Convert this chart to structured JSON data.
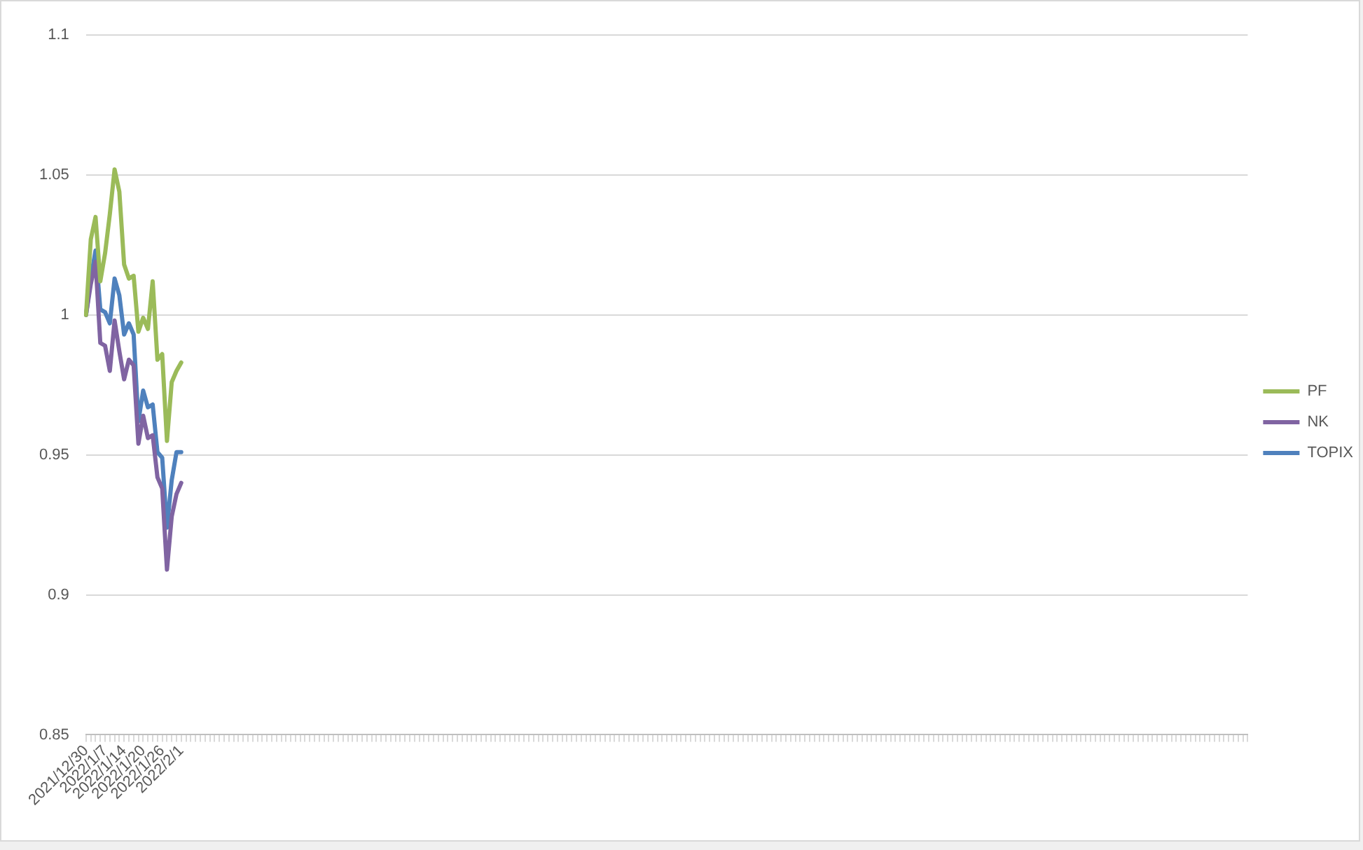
{
  "chart_data": {
    "type": "line",
    "categories": [
      "2021/12/30",
      null,
      null,
      null,
      "2022/1/7",
      null,
      null,
      null,
      "2022/1/14",
      null,
      null,
      null,
      "2022/1/20",
      null,
      null,
      null,
      "2022/1/26",
      null,
      null,
      null,
      "2022/2/1",
      null,
      null,
      null,
      null,
      null,
      null,
      null,
      null,
      null,
      null,
      null,
      null,
      null,
      null,
      null,
      null,
      null,
      null,
      null,
      null,
      null,
      null,
      null,
      null,
      null,
      null,
      null,
      null,
      null,
      null,
      null,
      null,
      null,
      null,
      null,
      null,
      null,
      null,
      null,
      null,
      null,
      null,
      null,
      null,
      null,
      null,
      null,
      null,
      null,
      null,
      null,
      null,
      null,
      null,
      null,
      null,
      null,
      null,
      null,
      null,
      null,
      null,
      null,
      null,
      null,
      null,
      null,
      null,
      null,
      null,
      null,
      null,
      null,
      null,
      null,
      null,
      null,
      null,
      null,
      null,
      null,
      null,
      null,
      null,
      null,
      null,
      null,
      null,
      null,
      null,
      null,
      null,
      null,
      null,
      null,
      null,
      null,
      null,
      null,
      null,
      null,
      null,
      null,
      null,
      null,
      null,
      null,
      null,
      null,
      null,
      null,
      null,
      null,
      null,
      null,
      null,
      null,
      null,
      null,
      null,
      null,
      null,
      null,
      null,
      null,
      null,
      null,
      null,
      null,
      null,
      null,
      null,
      null,
      null,
      null,
      null,
      null,
      null,
      null,
      null,
      null,
      null,
      null,
      null,
      null,
      null,
      null,
      null,
      null,
      null,
      null,
      null,
      null,
      null,
      null,
      null,
      null,
      null,
      null,
      null,
      null,
      null,
      null,
      null,
      null,
      null,
      null,
      null,
      null,
      null,
      null,
      null,
      null,
      null,
      null,
      null,
      null,
      null,
      null,
      null,
      null,
      null,
      null,
      null,
      null,
      null,
      null,
      null,
      null,
      null,
      null,
      null,
      null,
      null,
      null,
      null,
      null,
      null,
      null,
      null,
      null,
      null,
      null,
      null,
      null,
      null,
      null,
      null,
      null,
      null,
      null,
      null,
      null,
      null,
      null,
      null,
      null,
      null,
      null,
      null,
      null,
      null,
      null,
      null
    ],
    "series": [
      {
        "name": "PF",
        "color": "#9bbb59",
        "values": [
          1.0,
          1.027,
          1.035,
          1.012,
          1.022,
          1.036,
          1.052,
          1.044,
          1.018,
          1.013,
          1.014,
          0.994,
          0.999,
          0.995,
          1.012,
          0.984,
          0.986,
          0.955,
          0.976,
          0.98,
          0.983,
          null,
          null,
          null,
          null,
          null,
          null,
          null,
          null,
          null,
          null,
          null,
          null,
          null,
          null,
          null,
          null,
          null,
          null,
          null,
          null,
          null,
          null,
          null,
          null,
          null,
          null,
          null,
          null,
          null,
          null,
          null,
          null,
          null,
          null,
          null,
          null,
          null,
          null,
          null,
          null,
          null,
          null,
          null,
          null,
          null,
          null,
          null,
          null,
          null,
          null,
          null,
          null,
          null,
          null,
          null,
          null,
          null,
          null,
          null,
          null,
          null,
          null,
          null,
          null,
          null,
          null,
          null,
          null,
          null,
          null,
          null,
          null,
          null,
          null,
          null,
          null,
          null,
          null,
          null,
          null,
          null,
          null,
          null,
          null,
          null,
          null,
          null,
          null,
          null,
          null,
          null,
          null,
          null,
          null,
          null,
          null,
          null,
          null,
          null,
          null,
          null,
          null,
          null,
          null,
          null,
          null,
          null,
          null,
          null,
          null,
          null,
          null,
          null,
          null,
          null,
          null,
          null,
          null,
          null,
          null,
          null,
          null,
          null,
          null,
          null,
          null,
          null,
          null,
          null,
          null,
          null,
          null,
          null,
          null,
          null,
          null,
          null,
          null,
          null,
          null,
          null,
          null,
          null,
          null,
          null,
          null,
          null,
          null,
          null,
          null,
          null,
          null,
          null,
          null,
          null,
          null,
          null,
          null,
          null,
          null,
          null,
          null,
          null,
          null,
          null,
          null,
          null,
          null,
          null,
          null,
          null,
          null,
          null,
          null,
          null,
          null,
          null,
          null,
          null,
          null,
          null,
          null,
          null,
          null,
          null,
          null,
          null,
          null,
          null,
          null,
          null,
          null,
          null,
          null,
          null,
          null,
          null,
          null,
          null,
          null,
          null,
          null,
          null,
          null,
          null,
          null,
          null,
          null,
          null,
          null,
          null,
          null,
          null,
          null,
          null,
          null,
          null,
          null,
          null,
          null,
          null,
          null,
          null,
          null
        ]
      },
      {
        "name": "NK",
        "color": "#8064a2",
        "values": [
          1.0,
          1.011,
          1.019,
          0.99,
          0.989,
          0.98,
          0.998,
          0.987,
          0.977,
          0.984,
          0.982,
          0.954,
          0.964,
          0.956,
          0.957,
          0.942,
          0.938,
          0.909,
          0.928,
          0.936,
          0.94,
          null,
          null,
          null,
          null,
          null,
          null,
          null,
          null,
          null,
          null,
          null,
          null,
          null,
          null,
          null,
          null,
          null,
          null,
          null,
          null,
          null,
          null,
          null,
          null,
          null,
          null,
          null,
          null,
          null,
          null,
          null,
          null,
          null,
          null,
          null,
          null,
          null,
          null,
          null,
          null,
          null,
          null,
          null,
          null,
          null,
          null,
          null,
          null,
          null,
          null,
          null,
          null,
          null,
          null,
          null,
          null,
          null,
          null,
          null,
          null,
          null,
          null,
          null,
          null,
          null,
          null,
          null,
          null,
          null,
          null,
          null,
          null,
          null,
          null,
          null,
          null,
          null,
          null,
          null,
          null,
          null,
          null,
          null,
          null,
          null,
          null,
          null,
          null,
          null,
          null,
          null,
          null,
          null,
          null,
          null,
          null,
          null,
          null,
          null,
          null,
          null,
          null,
          null,
          null,
          null,
          null,
          null,
          null,
          null,
          null,
          null,
          null,
          null,
          null,
          null,
          null,
          null,
          null,
          null,
          null,
          null,
          null,
          null,
          null,
          null,
          null,
          null,
          null,
          null,
          null,
          null,
          null,
          null,
          null,
          null,
          null,
          null,
          null,
          null,
          null,
          null,
          null,
          null,
          null,
          null,
          null,
          null,
          null,
          null,
          null,
          null,
          null,
          null,
          null,
          null,
          null,
          null,
          null,
          null,
          null,
          null,
          null,
          null,
          null,
          null,
          null,
          null,
          null,
          null,
          null,
          null,
          null,
          null,
          null,
          null,
          null,
          null,
          null,
          null,
          null,
          null,
          null,
          null,
          null,
          null,
          null,
          null,
          null,
          null,
          null,
          null,
          null,
          null,
          null,
          null,
          null,
          null,
          null,
          null,
          null,
          null,
          null,
          null,
          null,
          null,
          null,
          null,
          null,
          null,
          null,
          null,
          null,
          null,
          null,
          null,
          null,
          null,
          null,
          null,
          null,
          null,
          null,
          null,
          null
        ]
      },
      {
        "name": "TOPIX",
        "color": "#4f81bd",
        "values": [
          1.0,
          1.013,
          1.023,
          1.002,
          1.001,
          0.997,
          1.013,
          1.007,
          0.993,
          0.997,
          0.993,
          0.962,
          0.973,
          0.967,
          0.968,
          0.951,
          0.949,
          0.924,
          0.941,
          0.951,
          0.951,
          null,
          null,
          null,
          null,
          null,
          null,
          null,
          null,
          null,
          null,
          null,
          null,
          null,
          null,
          null,
          null,
          null,
          null,
          null,
          null,
          null,
          null,
          null,
          null,
          null,
          null,
          null,
          null,
          null,
          null,
          null,
          null,
          null,
          null,
          null,
          null,
          null,
          null,
          null,
          null,
          null,
          null,
          null,
          null,
          null,
          null,
          null,
          null,
          null,
          null,
          null,
          null,
          null,
          null,
          null,
          null,
          null,
          null,
          null,
          null,
          null,
          null,
          null,
          null,
          null,
          null,
          null,
          null,
          null,
          null,
          null,
          null,
          null,
          null,
          null,
          null,
          null,
          null,
          null,
          null,
          null,
          null,
          null,
          null,
          null,
          null,
          null,
          null,
          null,
          null,
          null,
          null,
          null,
          null,
          null,
          null,
          null,
          null,
          null,
          null,
          null,
          null,
          null,
          null,
          null,
          null,
          null,
          null,
          null,
          null,
          null,
          null,
          null,
          null,
          null,
          null,
          null,
          null,
          null,
          null,
          null,
          null,
          null,
          null,
          null,
          null,
          null,
          null,
          null,
          null,
          null,
          null,
          null,
          null,
          null,
          null,
          null,
          null,
          null,
          null,
          null,
          null,
          null,
          null,
          null,
          null,
          null,
          null,
          null,
          null,
          null,
          null,
          null,
          null,
          null,
          null,
          null,
          null,
          null,
          null,
          null,
          null,
          null,
          null,
          null,
          null,
          null,
          null,
          null,
          null,
          null,
          null,
          null,
          null,
          null,
          null,
          null,
          null,
          null,
          null,
          null,
          null,
          null,
          null,
          null,
          null,
          null,
          null,
          null,
          null,
          null,
          null,
          null,
          null,
          null,
          null,
          null,
          null,
          null,
          null,
          null,
          null,
          null,
          null,
          null,
          null,
          null,
          null,
          null,
          null,
          null,
          null,
          null,
          null,
          null,
          null,
          null,
          null,
          null,
          null,
          null,
          null,
          null,
          null
        ]
      }
    ],
    "ylim": [
      0.85,
      1.1
    ],
    "yticks": [
      0.85,
      0.9,
      0.95,
      1,
      1.05,
      1.1
    ],
    "grid": "y",
    "legend": "right",
    "marker": "none",
    "line_style": "solid"
  }
}
